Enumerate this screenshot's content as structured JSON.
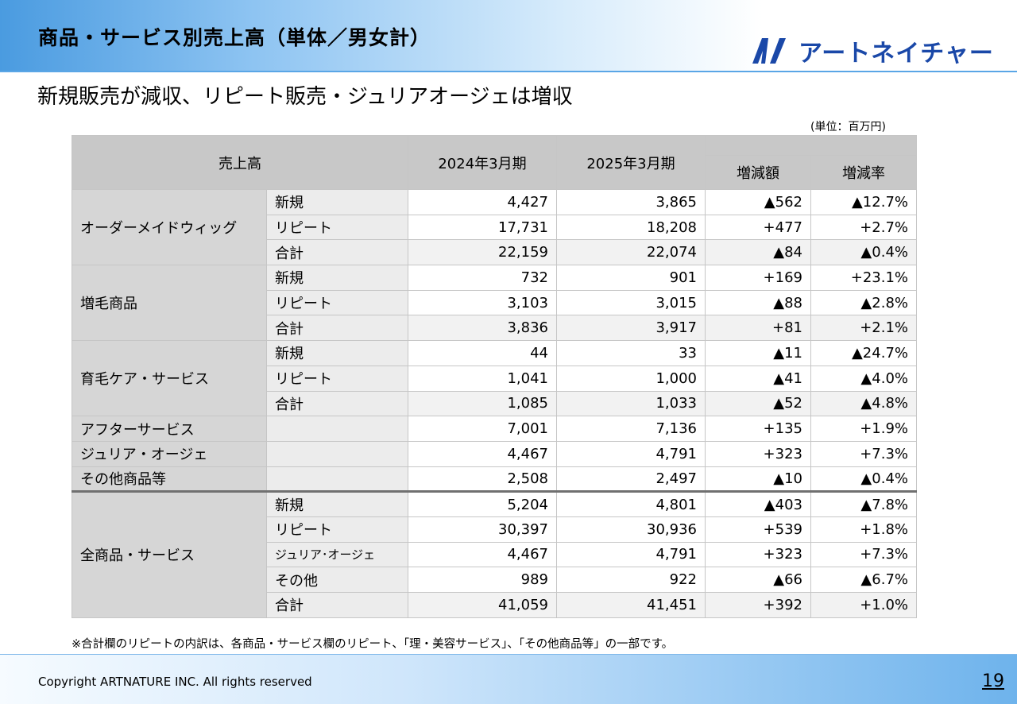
{
  "header": {
    "title": "商品・サービス別売上高（単体／男女計）",
    "logo_text": "アートネイチャー"
  },
  "subtitle": "新規販売が減収、リピート販売・ジュリアオージェは増収",
  "unit": "(単位：百万円)",
  "table": {
    "headers": {
      "sales": "売上高",
      "fy2024": "2024年3月期",
      "fy2025": "2025年3月期",
      "change_amount": "増減額",
      "change_rate": "増減率"
    },
    "rows": [
      {
        "cat": "オーダーメイドウィッグ",
        "sub": "新規",
        "a": "4,427",
        "b": "3,865",
        "d": "▲562",
        "r": "▲12.7%"
      },
      {
        "sub": "リピート",
        "a": "17,731",
        "b": "18,208",
        "d": "+477",
        "r": "+2.7%"
      },
      {
        "sub": "合計",
        "a": "22,159",
        "b": "22,074",
        "d": "▲84",
        "r": "▲0.4%"
      },
      {
        "cat": "増毛商品",
        "sub": "新規",
        "a": "732",
        "b": "901",
        "d": "+169",
        "r": "+23.1%"
      },
      {
        "sub": "リピート",
        "a": "3,103",
        "b": "3,015",
        "d": "▲88",
        "r": "▲2.8%"
      },
      {
        "sub": "合計",
        "a": "3,836",
        "b": "3,917",
        "d": "+81",
        "r": "+2.1%"
      },
      {
        "cat": "育毛ケア・サービス",
        "sub": "新規",
        "a": "44",
        "b": "33",
        "d": "▲11",
        "r": "▲24.7%"
      },
      {
        "sub": "リピート",
        "a": "1,041",
        "b": "1,000",
        "d": "▲41",
        "r": "▲4.0%"
      },
      {
        "sub": "合計",
        "a": "1,085",
        "b": "1,033",
        "d": "▲52",
        "r": "▲4.8%"
      },
      {
        "cat": "アフターサービス",
        "sub": "",
        "a": "7,001",
        "b": "7,136",
        "d": "+135",
        "r": "+1.9%"
      },
      {
        "cat": "ジュリア・オージェ",
        "sub": "",
        "a": "4,467",
        "b": "4,791",
        "d": "+323",
        "r": "+7.3%"
      },
      {
        "cat": "その他商品等",
        "sub": "",
        "a": "2,508",
        "b": "2,497",
        "d": "▲10",
        "r": "▲0.4%"
      },
      {
        "cat": "全商品・サービス",
        "sub": "新規",
        "a": "5,204",
        "b": "4,801",
        "d": "▲403",
        "r": "▲7.8%"
      },
      {
        "sub": "リピート",
        "a": "30,397",
        "b": "30,936",
        "d": "+539",
        "r": "+1.8%"
      },
      {
        "sub": "ジュリア･オージェ",
        "a": "4,467",
        "b": "4,791",
        "d": "+323",
        "r": "+7.3%"
      },
      {
        "sub": "その他",
        "a": "989",
        "b": "922",
        "d": "▲66",
        "r": "▲6.7%"
      },
      {
        "sub": "合計",
        "a": "41,059",
        "b": "41,451",
        "d": "+392",
        "r": "+1.0%"
      }
    ]
  },
  "note": "※合計欄のリピートの内訳は、各商品・サービス欄のリピート、「理・美容サービス」、「その他商品等」の一部です。",
  "footer": {
    "copyright": "Copyright ARTNATURE INC. All rights reserved",
    "page": "19"
  },
  "colors": {
    "header_blue": "#4a9be0",
    "logo_blue": "#1a48a8",
    "header_gray": "#c8c8c8"
  }
}
